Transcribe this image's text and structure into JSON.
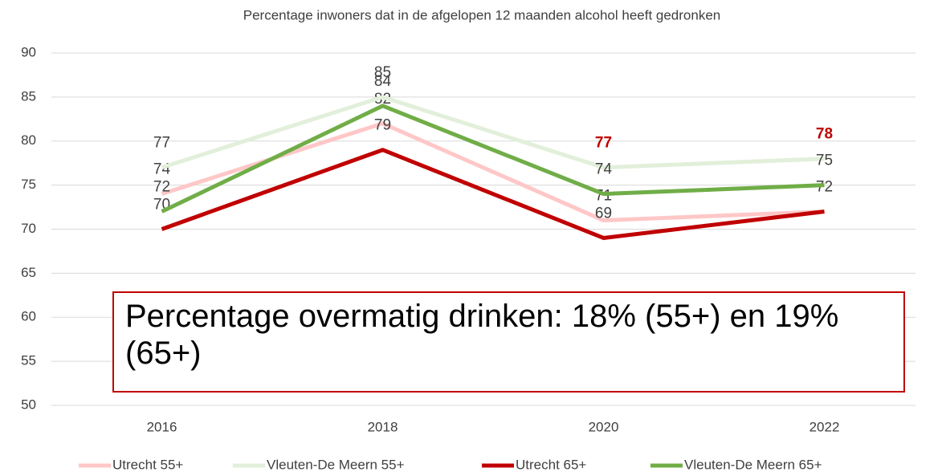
{
  "chart_data": {
    "type": "line",
    "title": "Percentage inwoners dat in de afgelopen 12 maanden alcohol heeft gedronken",
    "annotation": "Percentage overmatig drinken: 18% (55+) en 19% (65+)",
    "categories": [
      "2016",
      "2018",
      "2020",
      "2022"
    ],
    "series": [
      {
        "name": "Utrecht 55+",
        "color": "#ffc7c7",
        "values": [
          74,
          82,
          71,
          72
        ],
        "label_colors": [
          "#404040",
          "#404040",
          "#404040",
          "#404040"
        ],
        "show_labels": [
          true,
          true,
          true,
          true
        ]
      },
      {
        "name": "Vleuten-De Meern 55+",
        "color": "#e2efda",
        "values": [
          77,
          85,
          77,
          78
        ],
        "label_colors": [
          "#404040",
          "#404040",
          "#c00000",
          "#c00000"
        ],
        "show_labels": [
          true,
          true,
          true,
          true
        ]
      },
      {
        "name": "Utrecht 65+",
        "color": "#c00000",
        "values": [
          70,
          79,
          69,
          72
        ],
        "label_colors": [
          "#404040",
          "#404040",
          "#404040",
          "#404040"
        ],
        "show_labels": [
          true,
          true,
          true,
          false
        ]
      },
      {
        "name": "Vleuten-De Meern 65+",
        "color": "#70ad47",
        "values": [
          72,
          84,
          74,
          75
        ],
        "label_colors": [
          "#404040",
          "#404040",
          "#404040",
          "#404040"
        ],
        "show_labels": [
          true,
          true,
          true,
          true
        ]
      }
    ],
    "ylim": [
      50,
      90
    ],
    "yticks": [
      50,
      55,
      60,
      65,
      70,
      75,
      80,
      85,
      90
    ],
    "grid": true,
    "legend": "bottom"
  }
}
